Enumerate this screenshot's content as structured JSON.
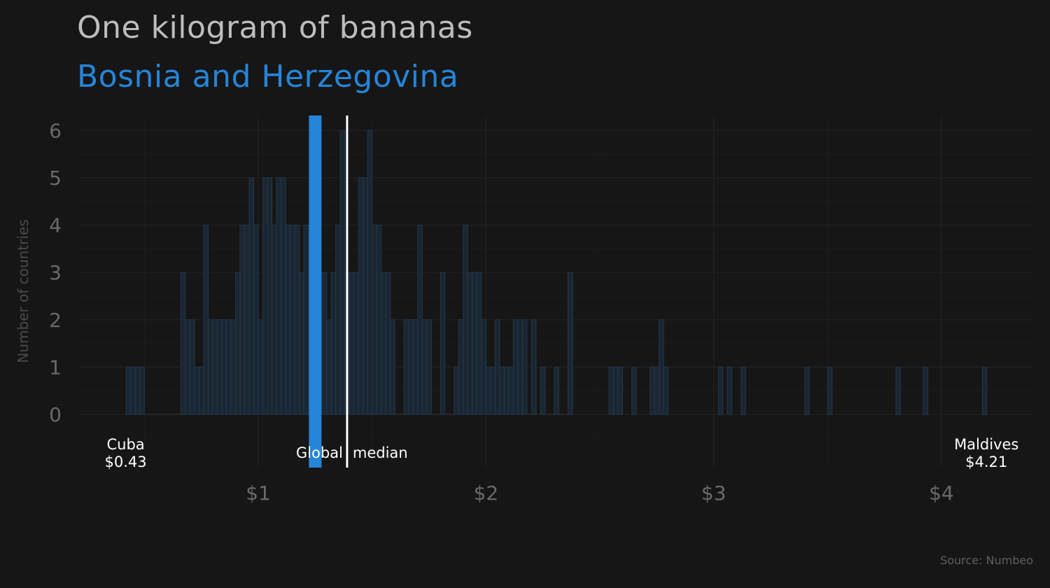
{
  "title": "One kilogram of bananas",
  "subtitle": "Bosnia and Herzegovina",
  "source": "Source: Numbeo",
  "colors": {
    "background": "#161616",
    "bars_fill": "#1a2632",
    "bars_stroke": "#24374a",
    "highlight": "#2585d8",
    "median": "#ffffff",
    "axis_text": "#6a6a6a",
    "title": "#bdbdbd"
  },
  "chart_data": {
    "type": "bar",
    "title": "One kilogram of bananas",
    "subtitle": "Bosnia and Herzegovina",
    "xlabel": "",
    "ylabel": "Number of countries",
    "bin_width": 0.02,
    "xlim": [
      0.22,
      4.38
    ],
    "ylim": [
      -1.1,
      6.3
    ],
    "x_ticks": [
      1,
      2,
      3,
      4
    ],
    "x_tick_labels": [
      "$1",
      "$2",
      "$3",
      "$4"
    ],
    "y_ticks": [
      0,
      1,
      2,
      3,
      4,
      5,
      6
    ],
    "y_tick_labels": [
      "0",
      "1",
      "2",
      "3",
      "4",
      "5",
      "6"
    ],
    "grid": true,
    "bins": [
      {
        "x": 0.43,
        "count": 1
      },
      {
        "x": 0.45,
        "count": 1
      },
      {
        "x": 0.47,
        "count": 1
      },
      {
        "x": 0.49,
        "count": 1
      },
      {
        "x": 0.51,
        "count": 0
      },
      {
        "x": 0.53,
        "count": 0
      },
      {
        "x": 0.55,
        "count": 0
      },
      {
        "x": 0.57,
        "count": 0
      },
      {
        "x": 0.59,
        "count": 0
      },
      {
        "x": 0.61,
        "count": 0
      },
      {
        "x": 0.63,
        "count": 0
      },
      {
        "x": 0.65,
        "count": 0
      },
      {
        "x": 0.67,
        "count": 3
      },
      {
        "x": 0.69,
        "count": 2
      },
      {
        "x": 0.71,
        "count": 2
      },
      {
        "x": 0.73,
        "count": 1
      },
      {
        "x": 0.75,
        "count": 1
      },
      {
        "x": 0.77,
        "count": 4
      },
      {
        "x": 0.79,
        "count": 2
      },
      {
        "x": 0.81,
        "count": 2
      },
      {
        "x": 0.83,
        "count": 2
      },
      {
        "x": 0.85,
        "count": 2
      },
      {
        "x": 0.87,
        "count": 2
      },
      {
        "x": 0.89,
        "count": 2
      },
      {
        "x": 0.91,
        "count": 3
      },
      {
        "x": 0.93,
        "count": 4
      },
      {
        "x": 0.95,
        "count": 4
      },
      {
        "x": 0.97,
        "count": 5
      },
      {
        "x": 0.99,
        "count": 4
      },
      {
        "x": 1.01,
        "count": 2
      },
      {
        "x": 1.03,
        "count": 5
      },
      {
        "x": 1.05,
        "count": 5
      },
      {
        "x": 1.07,
        "count": 4
      },
      {
        "x": 1.09,
        "count": 5
      },
      {
        "x": 1.11,
        "count": 5
      },
      {
        "x": 1.13,
        "count": 4
      },
      {
        "x": 1.15,
        "count": 4
      },
      {
        "x": 1.17,
        "count": 4
      },
      {
        "x": 1.19,
        "count": 3
      },
      {
        "x": 1.21,
        "count": 4
      },
      {
        "x": 1.23,
        "count": 4
      },
      {
        "x": 1.25,
        "count": 3
      },
      {
        "x": 1.27,
        "count": 2
      },
      {
        "x": 1.29,
        "count": 3
      },
      {
        "x": 1.31,
        "count": 2
      },
      {
        "x": 1.33,
        "count": 3
      },
      {
        "x": 1.35,
        "count": 4
      },
      {
        "x": 1.37,
        "count": 6
      },
      {
        "x": 1.39,
        "count": 3
      },
      {
        "x": 1.41,
        "count": 3
      },
      {
        "x": 1.43,
        "count": 3
      },
      {
        "x": 1.45,
        "count": 5
      },
      {
        "x": 1.47,
        "count": 5
      },
      {
        "x": 1.49,
        "count": 6
      },
      {
        "x": 1.51,
        "count": 4
      },
      {
        "x": 1.53,
        "count": 4
      },
      {
        "x": 1.55,
        "count": 3
      },
      {
        "x": 1.57,
        "count": 3
      },
      {
        "x": 1.59,
        "count": 2
      },
      {
        "x": 1.61,
        "count": 0
      },
      {
        "x": 1.63,
        "count": 0
      },
      {
        "x": 1.65,
        "count": 2
      },
      {
        "x": 1.67,
        "count": 2
      },
      {
        "x": 1.69,
        "count": 2
      },
      {
        "x": 1.71,
        "count": 4
      },
      {
        "x": 1.73,
        "count": 2
      },
      {
        "x": 1.75,
        "count": 2
      },
      {
        "x": 1.77,
        "count": 0
      },
      {
        "x": 1.79,
        "count": 0
      },
      {
        "x": 1.81,
        "count": 3
      },
      {
        "x": 1.83,
        "count": 0
      },
      {
        "x": 1.85,
        "count": 0
      },
      {
        "x": 1.87,
        "count": 1
      },
      {
        "x": 1.89,
        "count": 2
      },
      {
        "x": 1.91,
        "count": 4
      },
      {
        "x": 1.93,
        "count": 3
      },
      {
        "x": 1.95,
        "count": 3
      },
      {
        "x": 1.97,
        "count": 3
      },
      {
        "x": 1.99,
        "count": 2
      },
      {
        "x": 2.01,
        "count": 1
      },
      {
        "x": 2.03,
        "count": 1
      },
      {
        "x": 2.05,
        "count": 2
      },
      {
        "x": 2.07,
        "count": 1
      },
      {
        "x": 2.09,
        "count": 1
      },
      {
        "x": 2.11,
        "count": 1
      },
      {
        "x": 2.13,
        "count": 2
      },
      {
        "x": 2.15,
        "count": 2
      },
      {
        "x": 2.17,
        "count": 2
      },
      {
        "x": 2.19,
        "count": 0
      },
      {
        "x": 2.21,
        "count": 2
      },
      {
        "x": 2.23,
        "count": 0
      },
      {
        "x": 2.25,
        "count": 1
      },
      {
        "x": 2.27,
        "count": 0
      },
      {
        "x": 2.29,
        "count": 0
      },
      {
        "x": 2.31,
        "count": 1
      },
      {
        "x": 2.33,
        "count": 0
      },
      {
        "x": 2.35,
        "count": 0
      },
      {
        "x": 2.37,
        "count": 3
      },
      {
        "x": 2.55,
        "count": 1
      },
      {
        "x": 2.57,
        "count": 1
      },
      {
        "x": 2.59,
        "count": 1
      },
      {
        "x": 2.65,
        "count": 1
      },
      {
        "x": 2.73,
        "count": 1
      },
      {
        "x": 2.75,
        "count": 1
      },
      {
        "x": 2.77,
        "count": 2
      },
      {
        "x": 2.79,
        "count": 1
      },
      {
        "x": 3.03,
        "count": 1
      },
      {
        "x": 3.07,
        "count": 1
      },
      {
        "x": 3.13,
        "count": 1
      },
      {
        "x": 3.41,
        "count": 1
      },
      {
        "x": 3.51,
        "count": 1
      },
      {
        "x": 3.81,
        "count": 1
      },
      {
        "x": 3.93,
        "count": 1
      },
      {
        "x": 4.19,
        "count": 1
      }
    ],
    "highlight": {
      "name": "Bosnia and Herzegovina",
      "x": 1.25
    },
    "median": {
      "label": "Global median",
      "x": 1.39
    },
    "annotations": [
      {
        "name": "Cuba",
        "value": "$0.43",
        "x": 0.43
      },
      {
        "name": "Maldives",
        "value": "$4.21",
        "x": 4.21
      }
    ]
  }
}
